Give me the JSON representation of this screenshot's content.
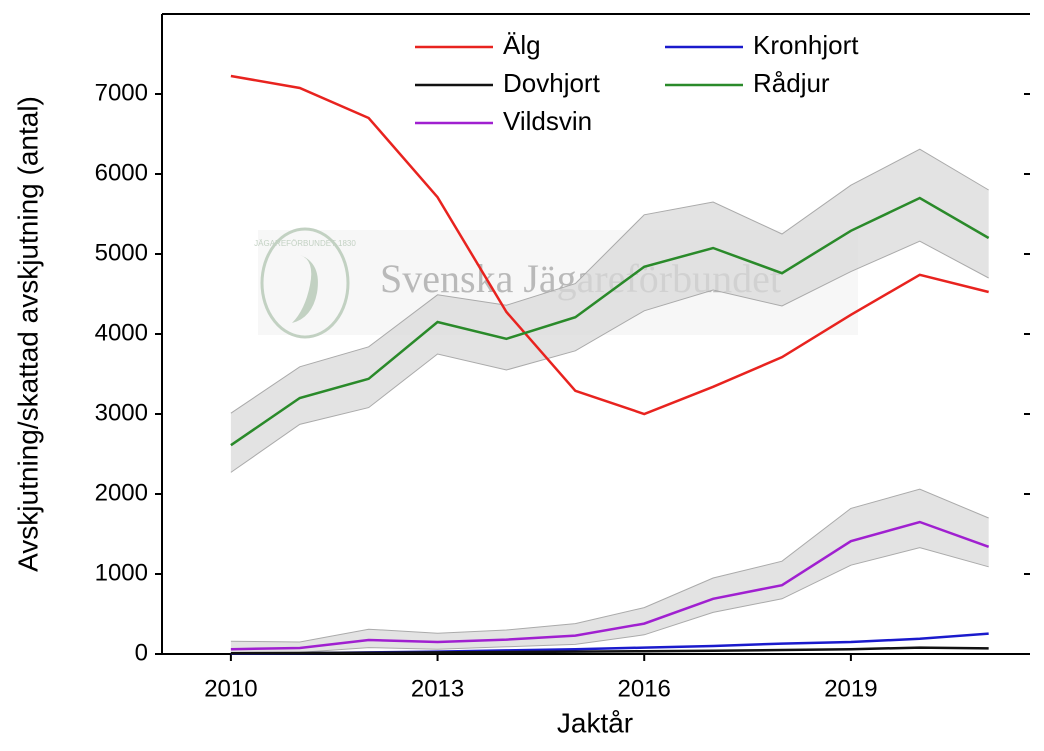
{
  "chart_data": {
    "type": "line",
    "xlabel": "Jaktår",
    "ylabel": "Avskjutning/skattad avskjutning (antal)",
    "watermark": "Svenska Jägareförbundet",
    "emblem": "JÄGAREFÖRBUNDET 1830",
    "x": [
      2010,
      2011,
      2012,
      2013,
      2014,
      2015,
      2016,
      2017,
      2018,
      2019,
      2020,
      2021
    ],
    "xlim": [
      2009,
      2021.6
    ],
    "xticks": [
      2010,
      2013,
      2016,
      2019
    ],
    "ylim": [
      0,
      8000
    ],
    "yticks": [
      0,
      1000,
      2000,
      3000,
      4000,
      5000,
      6000,
      7000
    ],
    "legend": "top",
    "series": [
      {
        "name": "Älg",
        "color": "#e8231f",
        "values": [
          7225,
          7075,
          6700,
          5710,
          4275,
          3290,
          3000,
          3340,
          3710,
          4240,
          4740,
          4525
        ]
      },
      {
        "name": "Kronhjort",
        "color": "#1a1acc",
        "values": [
          5,
          10,
          20,
          30,
          45,
          60,
          80,
          100,
          130,
          150,
          190,
          255
        ]
      },
      {
        "name": "Dovhjort",
        "color": "#111111",
        "values": [
          10,
          12,
          15,
          20,
          25,
          30,
          35,
          40,
          50,
          60,
          80,
          70
        ]
      },
      {
        "name": "Rådjur",
        "color": "#2a8a2a",
        "values": [
          2610,
          3200,
          3440,
          4150,
          3940,
          4210,
          4840,
          5075,
          4760,
          5290,
          5700,
          5200
        ],
        "upper": [
          3010,
          3590,
          3840,
          4490,
          4360,
          4630,
          5490,
          5650,
          5250,
          5860,
          6310,
          5800
        ],
        "lower": [
          2270,
          2870,
          3080,
          3750,
          3550,
          3790,
          4290,
          4550,
          4350,
          4780,
          5160,
          4700
        ]
      },
      {
        "name": "Vildsvin",
        "color": "#a020d0",
        "values": [
          60,
          75,
          175,
          150,
          180,
          230,
          380,
          690,
          860,
          1410,
          1650,
          1340
        ],
        "upper": [
          160,
          150,
          310,
          260,
          300,
          380,
          580,
          950,
          1160,
          1820,
          2060,
          1700
        ],
        "lower": [
          10,
          20,
          80,
          60,
          90,
          120,
          240,
          520,
          690,
          1110,
          1330,
          1090
        ]
      }
    ]
  }
}
